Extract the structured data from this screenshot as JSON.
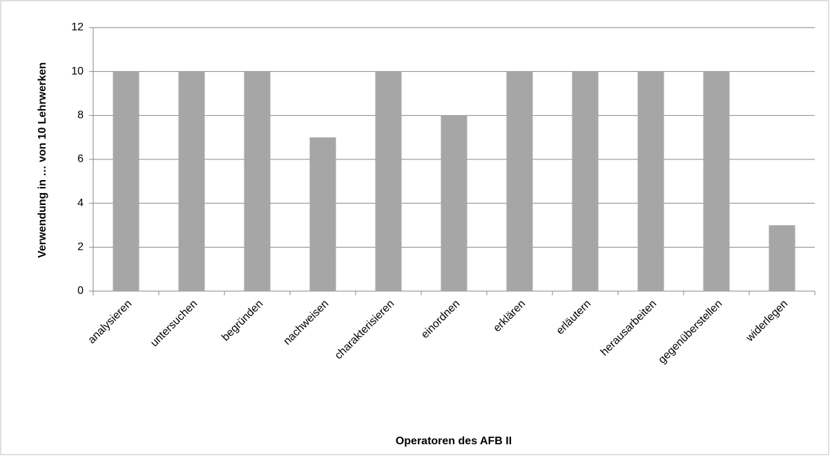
{
  "chart_data": {
    "type": "bar",
    "x_label": "Operatoren des AFB II",
    "y_label": "Verwendung in … von 10 Lehrwerken",
    "categories": [
      "analysieren",
      "untersuchen",
      "begründen",
      "nachweisen",
      "charakterisieren",
      "einordnen",
      "erklären",
      "erläutern",
      "herausarbeiten",
      "gegenüberstellen",
      "widerlegen"
    ],
    "values": [
      10,
      10,
      10,
      7,
      10,
      8,
      10,
      10,
      10,
      10,
      3
    ],
    "color": "#a6a6a6",
    "ylim": [
      0,
      12
    ],
    "yticks": [
      0,
      2,
      4,
      6,
      8,
      10,
      12
    ],
    "grid": true
  }
}
